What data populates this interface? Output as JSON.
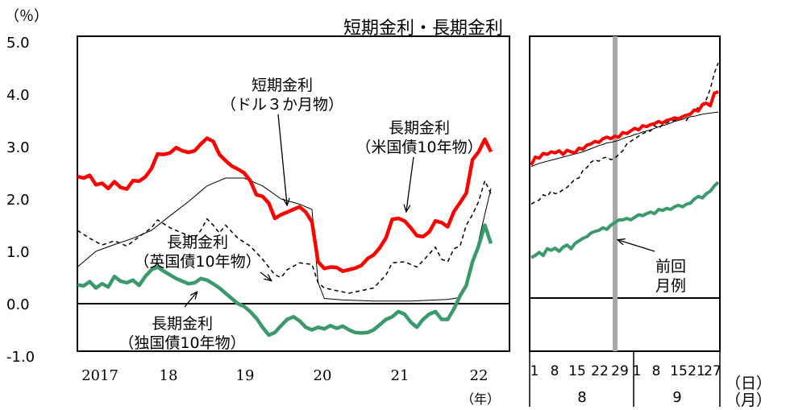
{
  "chart_data": {
    "type": "line",
    "title": "短期金利・長期金利",
    "y_unit_label": "（％）",
    "x_unit_label": "（年）",
    "ylim": [
      -1.0,
      5.0
    ],
    "yticks": [
      "5.0",
      "4.0",
      "3.0",
      "2.0",
      "1.0",
      "0.0",
      "-1.0"
    ],
    "grid": false,
    "legend": "none",
    "main_panel": {
      "x_range": [
        "2016-09",
        "2022-09"
      ],
      "x_tick_labels": [
        "2017",
        "18",
        "19",
        "20",
        "21",
        "22"
      ],
      "series": [
        {
          "color": "#ff0000",
          "style": "thick",
          "points": [
            [
              0,
              2.43
            ],
            [
              1,
              2.4
            ],
            [
              2,
              2.45
            ],
            [
              3,
              2.27
            ],
            [
              4,
              2.3
            ],
            [
              5,
              2.2
            ],
            [
              6,
              2.33
            ],
            [
              7,
              2.22
            ],
            [
              8,
              2.19
            ],
            [
              9,
              2.35
            ],
            [
              10,
              2.34
            ],
            [
              11,
              2.42
            ],
            [
              12,
              2.58
            ],
            [
              13,
              2.86
            ],
            [
              14,
              2.85
            ],
            [
              15,
              2.88
            ],
            [
              16,
              2.98
            ],
            [
              17,
              2.92
            ],
            [
              18,
              2.89
            ],
            [
              19,
              2.92
            ],
            [
              20,
              3.05
            ],
            [
              21,
              3.16
            ],
            [
              22,
              3.1
            ],
            [
              23,
              2.85
            ],
            [
              24,
              2.73
            ],
            [
              25,
              2.63
            ],
            [
              26,
              2.57
            ],
            [
              27,
              2.5
            ],
            [
              28,
              2.35
            ],
            [
              29,
              2.08
            ],
            [
              30,
              2.05
            ],
            [
              31,
              1.92
            ],
            [
              32,
              1.63
            ],
            [
              33,
              1.7
            ],
            [
              34,
              1.75
            ],
            [
              35,
              1.8
            ],
            [
              36,
              1.85
            ],
            [
              37,
              1.75
            ],
            [
              38,
              1.56
            ],
            [
              39,
              0.8
            ],
            [
              40,
              0.67
            ],
            [
              41,
              0.7
            ],
            [
              42,
              0.69
            ],
            [
              43,
              0.62
            ],
            [
              44,
              0.65
            ],
            [
              45,
              0.68
            ],
            [
              46,
              0.73
            ],
            [
              47,
              0.86
            ],
            [
              48,
              0.93
            ],
            [
              49,
              1.07
            ],
            [
              50,
              1.26
            ],
            [
              51,
              1.61
            ],
            [
              52,
              1.63
            ],
            [
              53,
              1.58
            ],
            [
              54,
              1.45
            ],
            [
              55,
              1.3
            ],
            [
              56,
              1.28
            ],
            [
              57,
              1.37
            ],
            [
              58,
              1.58
            ],
            [
              59,
              1.55
            ],
            [
              60,
              1.47
            ],
            [
              61,
              1.76
            ],
            [
              62,
              1.93
            ],
            [
              63,
              2.11
            ],
            [
              64,
              2.75
            ],
            [
              65,
              2.9
            ],
            [
              66,
              3.14
            ],
            [
              67,
              2.9
            ]
          ]
        },
        {
          "color": "#000000",
          "style": "thin",
          "points": [
            [
              0,
              0.7
            ],
            [
              3,
              1.0
            ],
            [
              6,
              1.13
            ],
            [
              9,
              1.25
            ],
            [
              12,
              1.4
            ],
            [
              15,
              1.68
            ],
            [
              18,
              1.95
            ],
            [
              21,
              2.25
            ],
            [
              24,
              2.4
            ],
            [
              27,
              2.4
            ],
            [
              30,
              2.25
            ],
            [
              33,
              2.0
            ],
            [
              36,
              1.9
            ],
            [
              38,
              1.8
            ],
            [
              39,
              0.4
            ],
            [
              40,
              0.1
            ],
            [
              43,
              0.07
            ],
            [
              48,
              0.05
            ],
            [
              54,
              0.05
            ],
            [
              60,
              0.08
            ],
            [
              62,
              0.12
            ],
            [
              63,
              0.35
            ],
            [
              65,
              1.2
            ],
            [
              67,
              2.2
            ]
          ]
        },
        {
          "color": "#000000",
          "style": "dashed",
          "points": [
            [
              0,
              1.4
            ],
            [
              2,
              1.25
            ],
            [
              4,
              1.12
            ],
            [
              6,
              1.2
            ],
            [
              8,
              1.1
            ],
            [
              10,
              1.28
            ],
            [
              12,
              1.45
            ],
            [
              13,
              1.6
            ],
            [
              15,
              1.45
            ],
            [
              17,
              1.35
            ],
            [
              19,
              1.25
            ],
            [
              20,
              1.4
            ],
            [
              21,
              1.62
            ],
            [
              22,
              1.5
            ],
            [
              23,
              1.35
            ],
            [
              24,
              1.5
            ],
            [
              26,
              1.25
            ],
            [
              28,
              1.1
            ],
            [
              30,
              0.85
            ],
            [
              32,
              0.55
            ],
            [
              33,
              0.5
            ],
            [
              34,
              0.65
            ],
            [
              36,
              0.78
            ],
            [
              38,
              0.75
            ],
            [
              39,
              0.4
            ],
            [
              40,
              0.3
            ],
            [
              42,
              0.25
            ],
            [
              44,
              0.2
            ],
            [
              46,
              0.25
            ],
            [
              48,
              0.3
            ],
            [
              50,
              0.55
            ],
            [
              51,
              0.78
            ],
            [
              53,
              0.8
            ],
            [
              55,
              0.7
            ],
            [
              56,
              0.82
            ],
            [
              58,
              1.08
            ],
            [
              59,
              0.85
            ],
            [
              60,
              0.8
            ],
            [
              61,
              1.05
            ],
            [
              62,
              1.1
            ],
            [
              63,
              1.5
            ],
            [
              64,
              1.7
            ],
            [
              65,
              1.95
            ],
            [
              66,
              2.35
            ],
            [
              67,
              2.1
            ]
          ]
        },
        {
          "color": "#3a9a6c",
          "style": "thick",
          "points": [
            [
              0,
              0.36
            ],
            [
              1,
              0.34
            ],
            [
              2,
              0.42
            ],
            [
              3,
              0.3
            ],
            [
              4,
              0.38
            ],
            [
              5,
              0.32
            ],
            [
              6,
              0.52
            ],
            [
              7,
              0.43
            ],
            [
              8,
              0.4
            ],
            [
              9,
              0.45
            ],
            [
              10,
              0.35
            ],
            [
              11,
              0.52
            ],
            [
              12,
              0.65
            ],
            [
              13,
              0.7
            ],
            [
              14,
              0.62
            ],
            [
              15,
              0.55
            ],
            [
              16,
              0.48
            ],
            [
              17,
              0.43
            ],
            [
              18,
              0.38
            ],
            [
              19,
              0.4
            ],
            [
              20,
              0.48
            ],
            [
              21,
              0.45
            ],
            [
              22,
              0.38
            ],
            [
              23,
              0.3
            ],
            [
              24,
              0.2
            ],
            [
              25,
              0.1
            ],
            [
              26,
              0.0
            ],
            [
              27,
              -0.05
            ],
            [
              28,
              -0.15
            ],
            [
              29,
              -0.28
            ],
            [
              30,
              -0.45
            ],
            [
              31,
              -0.6
            ],
            [
              32,
              -0.55
            ],
            [
              33,
              -0.42
            ],
            [
              34,
              -0.3
            ],
            [
              35,
              -0.25
            ],
            [
              36,
              -0.33
            ],
            [
              37,
              -0.45
            ],
            [
              38,
              -0.5
            ],
            [
              39,
              -0.45
            ],
            [
              40,
              -0.48
            ],
            [
              41,
              -0.42
            ],
            [
              42,
              -0.47
            ],
            [
              43,
              -0.43
            ],
            [
              44,
              -0.5
            ],
            [
              45,
              -0.55
            ],
            [
              46,
              -0.56
            ],
            [
              47,
              -0.55
            ],
            [
              48,
              -0.5
            ],
            [
              49,
              -0.4
            ],
            [
              50,
              -0.3
            ],
            [
              51,
              -0.25
            ],
            [
              52,
              -0.15
            ],
            [
              53,
              -0.2
            ],
            [
              54,
              -0.35
            ],
            [
              55,
              -0.45
            ],
            [
              56,
              -0.3
            ],
            [
              57,
              -0.2
            ],
            [
              58,
              -0.15
            ],
            [
              59,
              -0.3
            ],
            [
              60,
              -0.3
            ],
            [
              61,
              -0.1
            ],
            [
              62,
              0.15
            ],
            [
              63,
              0.35
            ],
            [
              64,
              0.8
            ],
            [
              65,
              1.1
            ],
            [
              66,
              1.5
            ],
            [
              67,
              1.15
            ]
          ]
        }
      ]
    },
    "detail_panel": {
      "day_ticks": [
        "1",
        "8",
        "15",
        "22",
        "29",
        "1",
        "8",
        "15",
        "21",
        "27"
      ],
      "month_labels": [
        "8",
        "9"
      ],
      "day_unit": "（日）",
      "month_unit": "（月）",
      "reference_line_index": 20,
      "series": [
        {
          "color": "#ff0000",
          "style": "thick",
          "values": [
            2.65,
            2.8,
            2.78,
            2.87,
            2.85,
            2.9,
            2.88,
            2.92,
            2.85,
            2.93,
            2.9,
            2.88,
            2.97,
            2.95,
            3.03,
            3.05,
            3.1,
            3.08,
            3.15,
            3.18,
            3.15,
            3.2,
            3.18,
            3.27,
            3.25,
            3.3,
            3.35,
            3.32,
            3.4,
            3.38,
            3.42,
            3.44,
            3.48,
            3.45,
            3.5,
            3.52,
            3.55,
            3.53,
            3.57,
            3.6,
            3.62,
            3.7,
            3.68,
            3.8,
            3.83,
            3.78,
            4.02,
            4.05
          ]
        },
        {
          "color": "#000000",
          "style": "thin",
          "values": [
            2.62,
            2.65,
            2.68,
            2.7,
            2.72,
            2.74,
            2.76,
            2.78,
            2.8,
            2.82,
            2.84,
            2.86,
            2.88,
            2.9,
            2.93,
            2.96,
            2.99,
            3.02,
            3.04,
            3.07,
            3.08,
            3.1,
            3.12,
            3.15,
            3.18,
            3.2,
            3.23,
            3.25,
            3.28,
            3.3,
            3.32,
            3.35,
            3.38,
            3.4,
            3.42,
            3.45,
            3.48,
            3.5,
            3.52,
            3.55,
            3.57,
            3.58,
            3.6,
            3.62,
            3.63,
            3.64,
            3.65,
            3.66
          ]
        },
        {
          "color": "#000000",
          "style": "dashed",
          "values": [
            1.9,
            1.95,
            1.98,
            2.08,
            2.05,
            2.15,
            2.1,
            2.12,
            2.18,
            2.22,
            2.3,
            2.38,
            2.4,
            2.55,
            2.6,
            2.7,
            2.75,
            2.72,
            2.78,
            2.8,
            2.75,
            2.78,
            2.85,
            2.92,
            3.05,
            3.1,
            3.15,
            3.2,
            3.25,
            3.28,
            3.3,
            3.4,
            3.35,
            3.42,
            3.45,
            3.48,
            3.5,
            3.52,
            3.55,
            3.5,
            3.62,
            3.68,
            3.75,
            3.82,
            3.9,
            4.1,
            4.4,
            4.6
          ]
        },
        {
          "color": "#3a9a6c",
          "style": "thick",
          "values": [
            0.88,
            0.92,
            0.98,
            0.92,
            1.05,
            1.02,
            1.06,
            1.0,
            1.08,
            1.12,
            1.05,
            1.15,
            1.2,
            1.25,
            1.28,
            1.35,
            1.38,
            1.4,
            1.45,
            1.42,
            1.5,
            1.55,
            1.6,
            1.6,
            1.63,
            1.6,
            1.65,
            1.7,
            1.68,
            1.72,
            1.75,
            1.72,
            1.8,
            1.78,
            1.82,
            1.8,
            1.85,
            1.88,
            1.85,
            1.9,
            1.92,
            2.0,
            2.05,
            2.02,
            2.1,
            2.15,
            2.25,
            2.32
          ]
        }
      ]
    },
    "annotations": [
      {
        "lines": [
          "短期金利",
          "（ドル３か月物）"
        ]
      },
      {
        "lines": [
          "長期金利",
          "（米国債10年物）"
        ]
      },
      {
        "lines": [
          "長期金利",
          "（英国債10年物）"
        ]
      },
      {
        "lines": [
          "長期金利",
          "（独国債10年物）"
        ]
      },
      {
        "lines": [
          "前回",
          "月例"
        ]
      }
    ]
  }
}
